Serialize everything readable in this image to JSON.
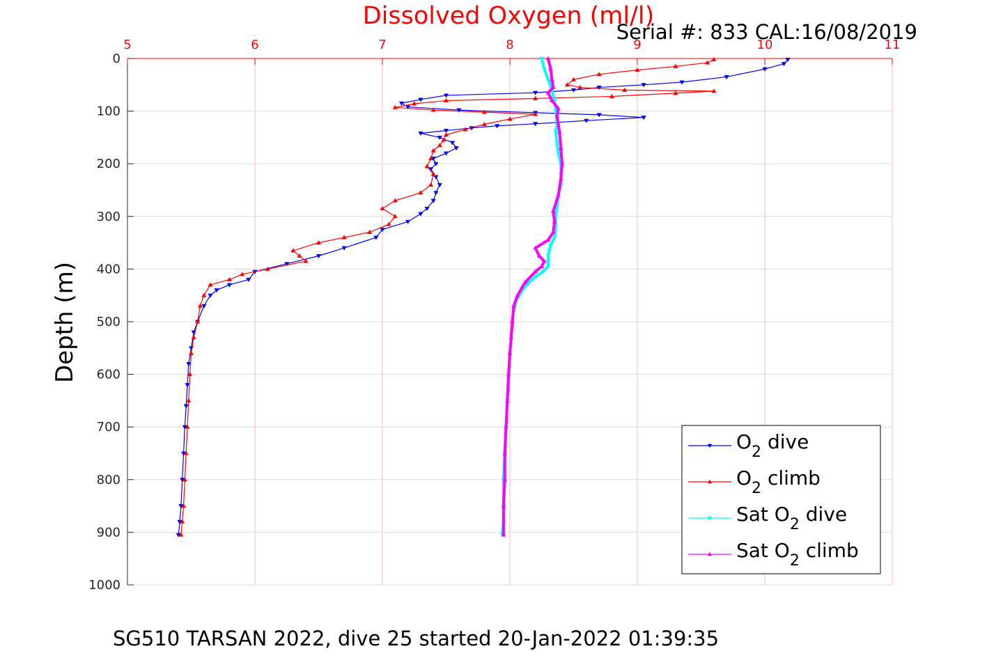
{
  "chart_data": {
    "type": "line",
    "title": "Dissolved Oxygen (ml/l)",
    "serial_label": "Serial #: 833  CAL:16/08/2019",
    "caption": "SG510 TARSAN 2022, dive 25 started 20-Jan-2022 01:39:35",
    "xlabel": "",
    "ylabel": "Depth (m)",
    "xlim": [
      5,
      11
    ],
    "ylim": [
      0,
      1000
    ],
    "y_reversed": true,
    "x_axis_position": "top",
    "x_ticks": [
      "5",
      "6",
      "7",
      "8",
      "9",
      "10",
      "11"
    ],
    "y_ticks": [
      "0",
      "100",
      "200",
      "300",
      "400",
      "500",
      "600",
      "700",
      "800",
      "900",
      "1000"
    ],
    "grid": true,
    "legend_position": "bottom-right",
    "colors": {
      "title": "#ff0000",
      "x_ticks": "#ff0000",
      "grid": "#d9d9d9",
      "x_grid": "#ffb6c1"
    },
    "series": [
      {
        "name": "O2 dive",
        "legend_main": "O",
        "legend_sub": "2",
        "legend_tail": " dive",
        "color": "#0000ff",
        "marker": "triangle-down",
        "x": [
          10.18,
          10.15,
          10.0,
          9.7,
          9.35,
          9.05,
          8.7,
          8.5,
          8.2,
          7.5,
          7.3,
          7.15,
          7.2,
          7.6,
          8.2,
          8.7,
          9.05,
          8.6,
          8.2,
          7.9,
          7.7,
          7.5,
          7.3,
          7.45,
          7.55,
          7.58,
          7.5,
          7.4,
          7.42,
          7.38,
          7.42,
          7.45,
          7.42,
          7.4,
          7.35,
          7.3,
          7.2,
          7.0,
          6.95,
          6.7,
          6.5,
          6.25,
          6.0,
          5.95,
          5.8,
          5.7,
          5.65,
          5.6,
          5.55,
          5.52,
          5.5,
          5.48,
          5.47,
          5.46,
          5.45,
          5.44,
          5.43,
          5.42,
          5.41,
          5.4
        ],
        "y": [
          2,
          10,
          20,
          35,
          45,
          50,
          55,
          60,
          65,
          70,
          78,
          85,
          92,
          98,
          103,
          107,
          112,
          118,
          124,
          128,
          132,
          137,
          142,
          150,
          160,
          170,
          180,
          190,
          200,
          210,
          225,
          240,
          255,
          270,
          285,
          295,
          310,
          325,
          340,
          360,
          375,
          390,
          405,
          420,
          430,
          440,
          450,
          470,
          500,
          520,
          550,
          580,
          620,
          660,
          700,
          750,
          800,
          850,
          880,
          905
        ]
      },
      {
        "name": "O2 climb",
        "legend_main": "O",
        "legend_sub": "2",
        "legend_tail": " climb",
        "color": "#ff0000",
        "marker": "triangle-up",
        "x": [
          9.6,
          9.55,
          9.3,
          9.0,
          8.7,
          8.5,
          8.45,
          8.55,
          8.9,
          9.6,
          9.3,
          8.8,
          8.2,
          7.5,
          7.25,
          7.1,
          7.4,
          7.8,
          8.2,
          8.0,
          7.8,
          7.65,
          7.5,
          7.48,
          7.45,
          7.4,
          7.38,
          7.35,
          7.4,
          7.38,
          7.3,
          7.1,
          7.0,
          7.1,
          7.05,
          6.9,
          6.7,
          6.5,
          6.3,
          6.35,
          6.4,
          6.1,
          5.9,
          5.8,
          5.65,
          5.6,
          5.57,
          5.55,
          5.52,
          5.5,
          5.49,
          5.48,
          5.47,
          5.46,
          5.45,
          5.44,
          5.43,
          5.42
        ],
        "y": [
          2,
          8,
          15,
          22,
          30,
          40,
          50,
          55,
          60,
          62,
          66,
          72,
          76,
          80,
          86,
          93,
          98,
          102,
          106,
          115,
          125,
          135,
          145,
          155,
          165,
          175,
          190,
          205,
          220,
          240,
          255,
          270,
          285,
          300,
          315,
          330,
          340,
          350,
          365,
          375,
          385,
          400,
          410,
          420,
          430,
          450,
          470,
          500,
          530,
          560,
          600,
          650,
          700,
          750,
          800,
          850,
          880,
          905
        ]
      },
      {
        "name": "Sat O2 dive",
        "legend_main": "Sat O",
        "legend_sub": "2",
        "legend_tail": " dive",
        "color": "#00ffff",
        "marker": "triangle-down",
        "x": [
          8.25,
          8.27,
          8.3,
          8.33,
          8.35,
          8.36,
          8.37,
          8.36,
          8.37,
          8.38,
          8.4,
          8.4,
          8.4,
          8.38,
          8.37,
          8.36,
          8.36,
          8.35,
          8.32,
          8.31,
          8.3,
          8.3,
          8.3,
          8.26,
          8.2,
          8.15,
          8.1,
          8.05,
          8.03,
          8.02,
          8.01,
          8.0,
          7.99,
          7.98,
          7.97,
          7.96,
          7.95,
          7.95,
          7.95,
          7.94
        ],
        "y": [
          0,
          20,
          40,
          60,
          80,
          100,
          120,
          140,
          160,
          180,
          200,
          220,
          240,
          260,
          280,
          300,
          320,
          340,
          355,
          365,
          375,
          385,
          395,
          405,
          415,
          425,
          440,
          460,
          480,
          500,
          530,
          560,
          600,
          650,
          700,
          750,
          800,
          850,
          880,
          905
        ]
      },
      {
        "name": "Sat O2 climb",
        "legend_main": "Sat O",
        "legend_sub": "2",
        "legend_tail": " climb",
        "color": "#ff00ff",
        "marker": "triangle-up",
        "x": [
          8.3,
          8.32,
          8.33,
          8.34,
          8.3,
          8.33,
          8.38,
          8.37,
          8.39,
          8.4,
          8.41,
          8.4,
          8.38,
          8.34,
          8.35,
          8.34,
          8.3,
          8.2,
          8.23,
          8.27,
          8.25,
          8.2,
          8.12,
          8.06,
          8.03,
          8.02,
          8.01,
          8.0,
          7.99,
          7.98,
          7.97,
          7.96,
          7.96,
          7.95,
          7.95
        ],
        "y": [
          0,
          20,
          40,
          55,
          65,
          80,
          95,
          110,
          140,
          170,
          200,
          230,
          260,
          290,
          310,
          330,
          345,
          360,
          375,
          385,
          395,
          405,
          425,
          450,
          470,
          500,
          530,
          560,
          600,
          650,
          700,
          750,
          800,
          850,
          905
        ]
      }
    ]
  }
}
